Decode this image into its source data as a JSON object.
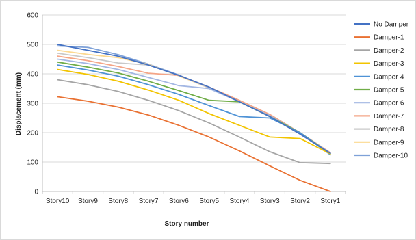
{
  "chart_data": {
    "type": "line",
    "title": "",
    "xlabel": "Story number",
    "ylabel": "Displacement (mm)",
    "ylim": [
      0,
      600
    ],
    "yticks": [
      0,
      100,
      200,
      300,
      400,
      500,
      600
    ],
    "grid": "horizontal",
    "legend_position": "right",
    "categories": [
      "Story10",
      "Story9",
      "Story8",
      "Story7",
      "Story6",
      "Story5",
      "Story4",
      "Story3",
      "Story2",
      "Story1"
    ],
    "series": [
      {
        "name": "No Damper",
        "color": "#4472C4",
        "values": [
          500,
          480,
          460,
          430,
          395,
          355,
          305,
          255,
          195,
          130
        ]
      },
      {
        "name": "Damper-1",
        "color": "#E97132",
        "values": [
          322,
          307,
          287,
          260,
          225,
          185,
          138,
          87,
          38,
          0
        ]
      },
      {
        "name": "Damper-2",
        "color": "#A5A5A5",
        "values": [
          380,
          363,
          340,
          310,
          275,
          233,
          185,
          135,
          98,
          95
        ]
      },
      {
        "name": "Damper-3",
        "color": "#F2C400",
        "values": [
          415,
          398,
          375,
          345,
          310,
          265,
          225,
          185,
          180,
          128
        ]
      },
      {
        "name": "Damper-4",
        "color": "#4E92D6",
        "values": [
          430,
          413,
          392,
          363,
          330,
          292,
          255,
          250,
          200,
          125
        ]
      },
      {
        "name": "Damper-5",
        "color": "#70AD47",
        "values": [
          440,
          423,
          403,
          375,
          343,
          310,
          305,
          255,
          200,
          128
        ]
      },
      {
        "name": "Damper-6",
        "color": "#A3B7E3",
        "values": [
          450,
          435,
          415,
          388,
          360,
          350,
          305,
          258,
          200,
          130
        ]
      },
      {
        "name": "Damper-7",
        "color": "#F4A587",
        "values": [
          460,
          445,
          425,
          402,
          395,
          355,
          310,
          262,
          200,
          132
        ]
      },
      {
        "name": "Damper-8",
        "color": "#C9C9C9",
        "values": [
          470,
          455,
          437,
          430,
          395,
          352,
          305,
          258,
          197,
          130
        ]
      },
      {
        "name": "Damper-9",
        "color": "#FCD991",
        "values": [
          480,
          466,
          455,
          432,
          393,
          352,
          305,
          255,
          195,
          130
        ]
      },
      {
        "name": "Damper-10",
        "color": "#7EA1D8",
        "values": [
          495,
          490,
          465,
          433,
          396,
          353,
          305,
          255,
          196,
          130
        ]
      }
    ]
  }
}
